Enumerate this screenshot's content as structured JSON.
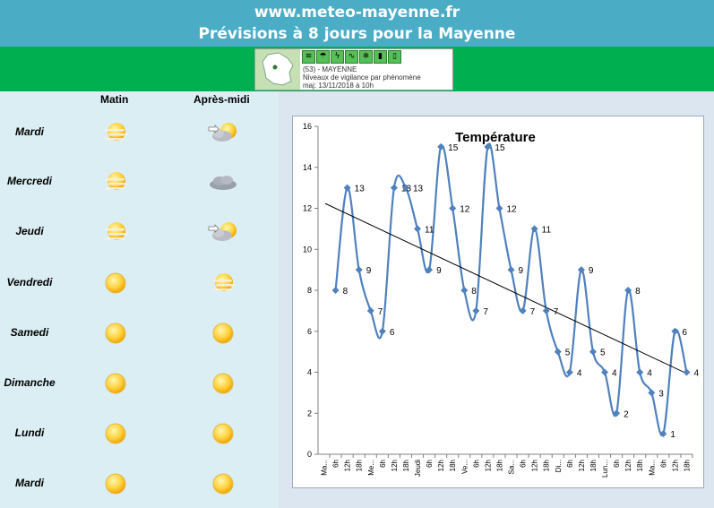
{
  "header": {
    "site": "www.meteo-mayenne.fr",
    "subtitle": "Prévisions à 8 jours pour la Mayenne"
  },
  "vigilance": {
    "line1": "(53) - MAYENNE",
    "line2": "Niveaux de vigilance par phénomène",
    "line3": "maj: 13/11/2018 à 10h",
    "icons": [
      "wind-icon",
      "rain-flood-icon",
      "storm-icon",
      "flood-icon",
      "snow-ice-icon",
      "heat-icon",
      "cold-icon"
    ]
  },
  "columns": {
    "morning": "Matin",
    "afternoon": "Après-midi"
  },
  "days": [
    {
      "name": "Mardi",
      "morning": "sun-fog",
      "afternoon": "sun-cloud-wind"
    },
    {
      "name": "Mercredi",
      "morning": "sun-fog",
      "afternoon": "dark-cloud"
    },
    {
      "name": "Jeudi",
      "morning": "sun-fog",
      "afternoon": "sun-cloud-wind"
    },
    {
      "name": "Vendredi",
      "morning": "sun",
      "afternoon": "sun-fog"
    },
    {
      "name": "Samedi",
      "morning": "sun",
      "afternoon": "sun"
    },
    {
      "name": "Dimanche",
      "morning": "sun",
      "afternoon": "sun"
    },
    {
      "name": "Lundi",
      "morning": "sun",
      "afternoon": "sun"
    },
    {
      "name": "Mardi",
      "morning": "sun",
      "afternoon": "sun"
    }
  ],
  "colors": {
    "series": "#4f81bd",
    "trend": "#000000",
    "header": "#4bacc6",
    "green": "#00b050"
  },
  "chart_data": {
    "type": "line",
    "title": "Température",
    "ylim": [
      0,
      16
    ],
    "yticks": [
      0,
      2,
      4,
      6,
      8,
      10,
      12,
      14,
      16
    ],
    "grid": false,
    "categories": [
      "Ma...",
      "6h",
      "12h",
      "18h",
      "Me...",
      "6h",
      "12h",
      "18h",
      "Jeudi",
      "6h",
      "12h",
      "18h",
      "Ve...",
      "6h",
      "12h",
      "18h",
      "Sa...",
      "6h",
      "12h",
      "18h",
      "Di...",
      "6h",
      "12h",
      "18h",
      "Lun...",
      "6h",
      "12h",
      "18h",
      "Ma...",
      "6h",
      "12h",
      "18h"
    ],
    "series": [
      {
        "values": [
          null,
          8,
          13,
          9,
          7,
          6,
          13,
          13,
          11,
          9,
          15,
          12,
          8,
          7,
          15,
          12,
          9,
          7,
          11,
          7,
          5,
          4,
          9,
          5,
          4,
          2,
          8,
          4,
          3,
          1,
          6,
          4
        ]
      }
    ],
    "trendline": {
      "type": "linear"
    }
  }
}
